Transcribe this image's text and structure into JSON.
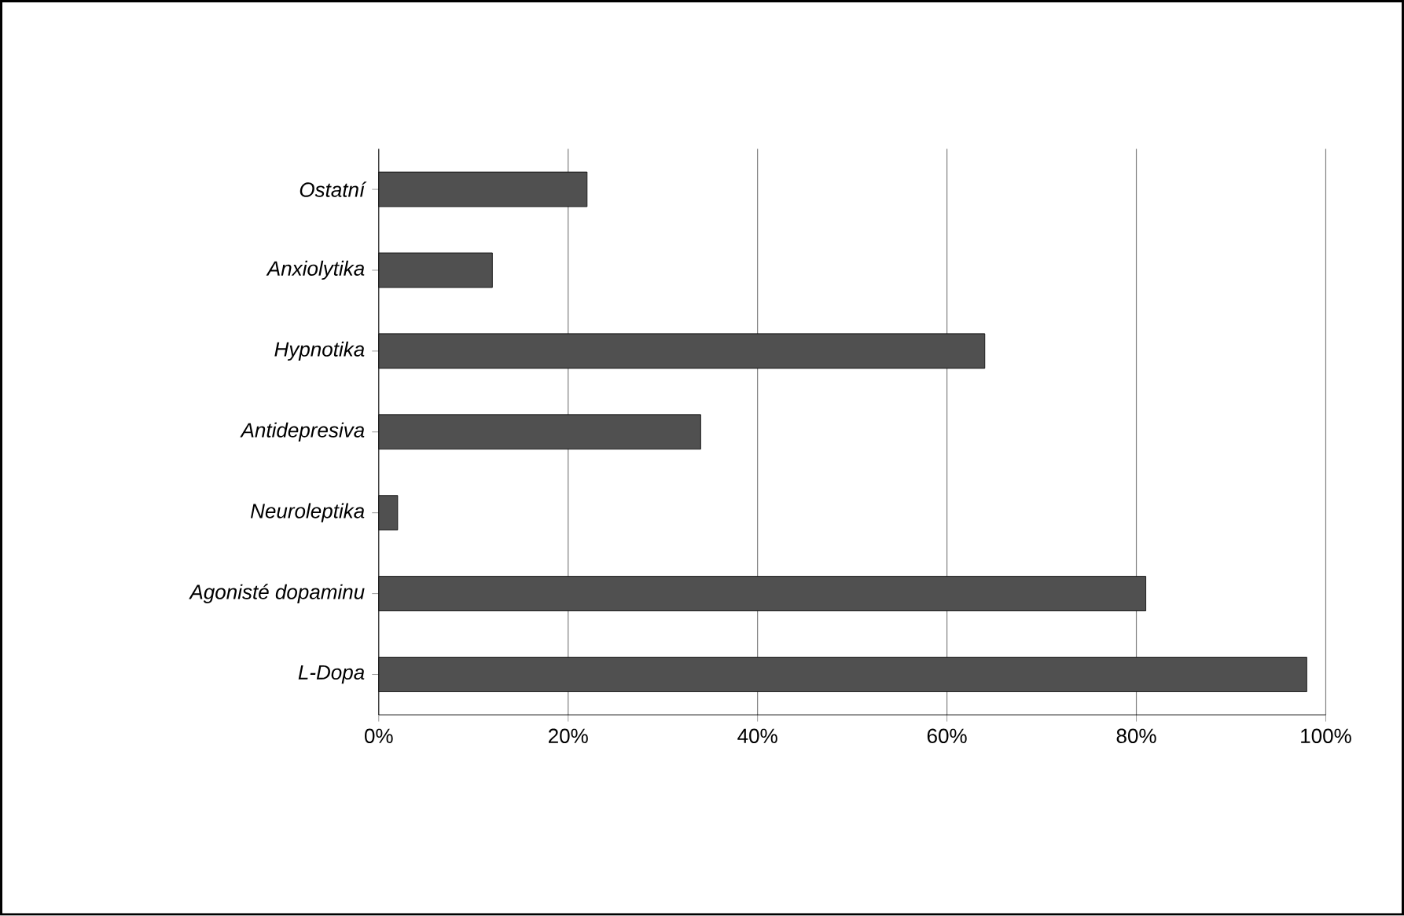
{
  "chart_data": {
    "type": "bar",
    "orientation": "horizontal",
    "categories": [
      "Ostatní",
      "Anxiolytika",
      "Hypnotika",
      "Antidepresiva",
      "Neuroleptika",
      "Agonisté dopaminu",
      "L-Dopa"
    ],
    "values": [
      22,
      12,
      64,
      34,
      2,
      81,
      98
    ],
    "color": "#505050",
    "xlim": [
      0,
      100
    ],
    "xticks": [
      {
        "value": 0,
        "label": "0%"
      },
      {
        "value": 20,
        "label": "20%"
      },
      {
        "value": 40,
        "label": "40%"
      },
      {
        "value": 60,
        "label": "60%"
      },
      {
        "value": 80,
        "label": "80%"
      },
      {
        "value": 100,
        "label": "100%"
      }
    ],
    "grid": "x"
  }
}
